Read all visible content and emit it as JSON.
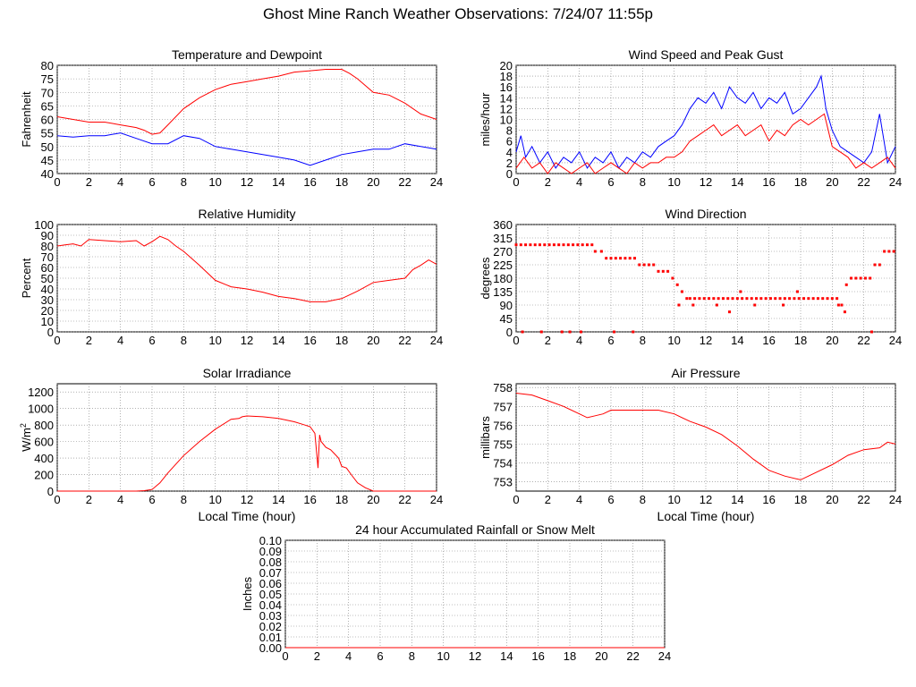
{
  "title": "Ghost Mine Ranch Weather Observations: 7/24/07 11:55p",
  "colors": {
    "red": "#ff0000",
    "blue": "#0000ff",
    "grid": "#808080",
    "axis": "#000000"
  },
  "chart_data": [
    {
      "id": "temp",
      "type": "line",
      "title": "Temperature and Dewpoint",
      "ylabel": "Fahrenheit",
      "xlabel": "",
      "xlim": [
        0,
        24
      ],
      "ylim": [
        40,
        80
      ],
      "xticks": [
        0,
        2,
        4,
        6,
        8,
        10,
        12,
        14,
        16,
        18,
        20,
        22,
        24
      ],
      "yticks": [
        40,
        45,
        50,
        55,
        60,
        65,
        70,
        75,
        80
      ],
      "grid": true,
      "series": [
        {
          "color": "red",
          "x": [
            0,
            1,
            2,
            3,
            4,
            5,
            5.5,
            6,
            6.5,
            7,
            8,
            9,
            10,
            11,
            12,
            13,
            14,
            15,
            16,
            17,
            18,
            18.5,
            19,
            20,
            21,
            22,
            23,
            24
          ],
          "y": [
            61,
            60,
            59,
            59,
            58,
            57,
            56,
            54.5,
            55,
            58,
            64,
            68,
            71,
            73,
            74,
            75,
            76,
            77.5,
            78,
            78.5,
            78.5,
            77,
            75,
            70,
            69,
            66,
            62,
            60
          ]
        },
        {
          "color": "blue",
          "x": [
            0,
            1,
            2,
            3,
            4,
            5,
            6,
            7,
            8,
            9,
            10,
            11,
            12,
            13,
            14,
            15,
            16,
            17,
            18,
            19,
            20,
            21,
            22,
            23,
            24
          ],
          "y": [
            54,
            53.5,
            54,
            54,
            55,
            53,
            51,
            51,
            54,
            53,
            50,
            49,
            48,
            47,
            46,
            45,
            43,
            45,
            47,
            48,
            49,
            49,
            51,
            50,
            49
          ]
        }
      ]
    },
    {
      "id": "wind",
      "type": "line",
      "title": "Wind Speed and Peak Gust",
      "ylabel": "miles/hour",
      "xlabel": "",
      "xlim": [
        0,
        24
      ],
      "ylim": [
        0,
        20
      ],
      "xticks": [
        0,
        2,
        4,
        6,
        8,
        10,
        12,
        14,
        16,
        18,
        20,
        22,
        24
      ],
      "yticks": [
        0,
        2,
        4,
        6,
        8,
        10,
        12,
        14,
        16,
        18,
        20
      ],
      "grid": true,
      "series": [
        {
          "color": "blue",
          "x": [
            0,
            0.3,
            0.6,
            1,
            1.5,
            2,
            2.5,
            3,
            3.5,
            4,
            4.5,
            5,
            5.5,
            6,
            6.5,
            7,
            7.5,
            8,
            8.5,
            9,
            9.5,
            10,
            10.5,
            11,
            11.5,
            12,
            12.5,
            13,
            13.5,
            14,
            14.5,
            15,
            15.5,
            16,
            16.5,
            17,
            17.5,
            18,
            18.5,
            19,
            19.3,
            19.6,
            20,
            20.5,
            21,
            21.5,
            22,
            22.5,
            23,
            23.5,
            24
          ],
          "y": [
            4,
            7,
            3,
            5,
            2,
            4,
            1,
            3,
            2,
            4,
            1,
            3,
            2,
            4,
            1,
            3,
            2,
            4,
            3,
            5,
            6,
            7,
            9,
            12,
            14,
            13,
            15,
            12,
            16,
            14,
            13,
            15,
            12,
            14,
            13,
            15,
            11,
            12,
            14,
            16,
            18,
            12,
            8,
            5,
            4,
            3,
            2,
            4,
            11,
            2,
            5
          ]
        },
        {
          "color": "red",
          "x": [
            0,
            0.5,
            1,
            1.5,
            2,
            2.5,
            3,
            3.5,
            4,
            4.5,
            5,
            5.5,
            6,
            6.5,
            7,
            7.5,
            8,
            8.5,
            9,
            9.5,
            10,
            10.5,
            11,
            11.5,
            12,
            12.5,
            13,
            13.5,
            14,
            14.5,
            15,
            15.5,
            16,
            16.5,
            17,
            17.5,
            18,
            18.5,
            19,
            19.5,
            20,
            20.5,
            21,
            21.5,
            22,
            22.5,
            23,
            23.5,
            24
          ],
          "y": [
            1,
            3,
            1,
            2,
            0,
            2,
            1,
            0,
            1,
            2,
            0,
            1,
            2,
            1,
            0,
            2,
            1,
            2,
            2,
            3,
            3,
            4,
            6,
            7,
            8,
            9,
            7,
            8,
            9,
            7,
            8,
            9,
            6,
            8,
            7,
            9,
            10,
            9,
            10,
            11,
            5,
            4,
            3,
            1,
            2,
            1,
            2,
            3,
            1
          ]
        }
      ]
    },
    {
      "id": "rh",
      "type": "line",
      "title": "Relative Humidity",
      "ylabel": "Percent",
      "xlabel": "",
      "xlim": [
        0,
        24
      ],
      "ylim": [
        0,
        100
      ],
      "xticks": [
        0,
        2,
        4,
        6,
        8,
        10,
        12,
        14,
        16,
        18,
        20,
        22,
        24
      ],
      "yticks": [
        0,
        10,
        20,
        30,
        40,
        50,
        60,
        70,
        80,
        90,
        100
      ],
      "grid": true,
      "series": [
        {
          "color": "red",
          "x": [
            0,
            0.5,
            1,
            1.5,
            2,
            3,
            4,
            5,
            5.5,
            6,
            6.5,
            7,
            7.5,
            8,
            9,
            10,
            11,
            12,
            13,
            14,
            15,
            16,
            17,
            18,
            19,
            20,
            21,
            22,
            22.5,
            23,
            23.5,
            24
          ],
          "y": [
            80,
            81,
            82,
            80,
            86,
            85,
            84,
            85,
            80,
            84,
            89,
            86,
            80,
            75,
            62,
            48,
            42,
            40,
            37,
            33,
            31,
            28,
            28,
            31,
            38,
            46,
            48,
            50,
            58,
            62,
            67,
            63
          ]
        }
      ]
    },
    {
      "id": "dir",
      "type": "scatter",
      "title": "Wind Direction",
      "ylabel": "degrees",
      "xlabel": "",
      "xlim": [
        0,
        24
      ],
      "ylim": [
        0,
        360
      ],
      "xticks": [
        0,
        2,
        4,
        6,
        8,
        10,
        12,
        14,
        16,
        18,
        20,
        22,
        24
      ],
      "yticks": [
        0,
        45,
        90,
        135,
        180,
        225,
        270,
        315,
        360
      ],
      "grid": true,
      "series": [
        {
          "color": "red",
          "x": [
            0,
            0.3,
            0.6,
            0.9,
            1.2,
            1.5,
            1.8,
            2.1,
            2.4,
            2.7,
            3,
            3.3,
            3.6,
            3.9,
            4.2,
            4.5,
            4.8,
            5,
            5.4,
            5.7,
            6,
            6.3,
            6.6,
            6.9,
            7.2,
            7.5,
            7.8,
            8.1,
            8.4,
            8.7,
            9,
            9.3,
            9.6,
            9.9,
            10.2,
            10.5,
            10.8,
            11,
            11.3,
            11.6,
            11.9,
            12.2,
            12.5,
            12.8,
            13.1,
            13.4,
            13.7,
            14,
            14.3,
            14.6,
            14.9,
            15.2,
            15.5,
            15.8,
            16.1,
            16.4,
            16.7,
            17,
            17.3,
            17.6,
            17.9,
            18.2,
            18.5,
            18.8,
            19.1,
            19.4,
            19.7,
            20,
            20.3,
            20.6,
            20.9,
            21.2,
            21.5,
            21.8,
            22.1,
            22.4,
            22.7,
            23,
            23.3,
            23.6,
            23.9,
            0.4,
            1.6,
            2.9,
            3.4,
            4.1,
            6.2,
            7.4,
            10.3,
            11.2,
            12.7,
            13.5,
            14.2,
            15.1,
            16.9,
            17.8,
            20.4,
            20.8,
            22.5
          ],
          "y": [
            292,
            292,
            292,
            292,
            292,
            292,
            292,
            292,
            292,
            292,
            292,
            292,
            292,
            292,
            292,
            292,
            292,
            270,
            270,
            247,
            247,
            247,
            247,
            247,
            247,
            247,
            225,
            225,
            225,
            225,
            203,
            203,
            203,
            180,
            158,
            135,
            112,
            112,
            112,
            112,
            112,
            112,
            112,
            112,
            112,
            112,
            112,
            112,
            112,
            112,
            112,
            112,
            112,
            112,
            112,
            112,
            112,
            112,
            112,
            112,
            112,
            112,
            112,
            112,
            112,
            112,
            112,
            112,
            112,
            90,
            158,
            180,
            180,
            180,
            180,
            180,
            225,
            225,
            270,
            270,
            270,
            0,
            0,
            0,
            0,
            0,
            0,
            0,
            90,
            90,
            90,
            67,
            135,
            90,
            90,
            135,
            90,
            67,
            0
          ]
        }
      ]
    },
    {
      "id": "solar",
      "type": "line",
      "title": "Solar Irradiance",
      "ylabel": "W/m",
      "ylabel_sup": "2",
      "xlabel": "Local Time (hour)",
      "xlim": [
        0,
        24
      ],
      "ylim": [
        0,
        1300
      ],
      "xticks": [
        0,
        2,
        4,
        6,
        8,
        10,
        12,
        14,
        16,
        18,
        20,
        22,
        24
      ],
      "yticks": [
        0,
        200,
        400,
        600,
        800,
        1000,
        1200
      ],
      "grid": true,
      "series": [
        {
          "color": "red",
          "x": [
            0,
            5,
            5.5,
            6,
            6.5,
            7,
            8,
            9,
            10,
            11,
            11.5,
            11.7,
            12,
            13,
            14,
            15,
            15.5,
            16,
            16.3,
            16.5,
            16.6,
            16.7,
            17,
            17.3,
            17.5,
            17.8,
            18,
            18.3,
            18.6,
            19,
            19.5,
            20,
            24
          ],
          "y": [
            0,
            0,
            5,
            20,
            100,
            220,
            430,
            600,
            750,
            870,
            880,
            900,
            910,
            900,
            880,
            840,
            810,
            780,
            700,
            280,
            680,
            600,
            530,
            500,
            460,
            400,
            300,
            280,
            200,
            100,
            40,
            0,
            0
          ]
        }
      ]
    },
    {
      "id": "press",
      "type": "line",
      "title": "Air Pressure",
      "ylabel": "millibars",
      "xlabel": "Local Time (hour)",
      "xlim": [
        0,
        24
      ],
      "ylim": [
        752.5,
        758.2
      ],
      "xticks": [
        0,
        2,
        4,
        6,
        8,
        10,
        12,
        14,
        16,
        18,
        20,
        22,
        24
      ],
      "yticks": [
        753,
        754,
        755,
        756,
        757,
        758
      ],
      "grid": true,
      "series": [
        {
          "color": "red",
          "x": [
            0,
            1,
            2,
            3,
            4,
            4.5,
            5,
            5.5,
            6,
            7,
            8,
            9,
            10,
            11,
            12,
            13,
            14,
            15,
            16,
            17,
            18,
            18.5,
            19,
            20,
            21,
            22,
            23,
            23.5,
            24
          ],
          "y": [
            757.7,
            757.6,
            757.3,
            757,
            756.6,
            756.4,
            756.5,
            756.6,
            756.8,
            756.8,
            756.8,
            756.8,
            756.6,
            756.2,
            755.9,
            755.5,
            754.9,
            754.2,
            753.6,
            753.3,
            753.1,
            753.3,
            753.5,
            753.9,
            754.4,
            754.7,
            754.8,
            755.1,
            755
          ]
        }
      ]
    },
    {
      "id": "rain",
      "type": "line",
      "title": "24 hour Accumulated Rainfall or Snow Melt",
      "ylabel": "Inches",
      "xlabel": "",
      "xlim": [
        0,
        24
      ],
      "ylim": [
        0,
        0.1
      ],
      "xticks": [
        0,
        2,
        4,
        6,
        8,
        10,
        12,
        14,
        16,
        18,
        20,
        22,
        24
      ],
      "yticks": [
        "0.00",
        "0.01",
        "0.02",
        "0.03",
        "0.04",
        "0.05",
        "0.06",
        "0.07",
        "0.08",
        "0.09",
        "0.10"
      ],
      "grid": true,
      "series": [
        {
          "color": "red",
          "x": [
            0,
            24
          ],
          "y": [
            0,
            0
          ]
        }
      ]
    }
  ]
}
